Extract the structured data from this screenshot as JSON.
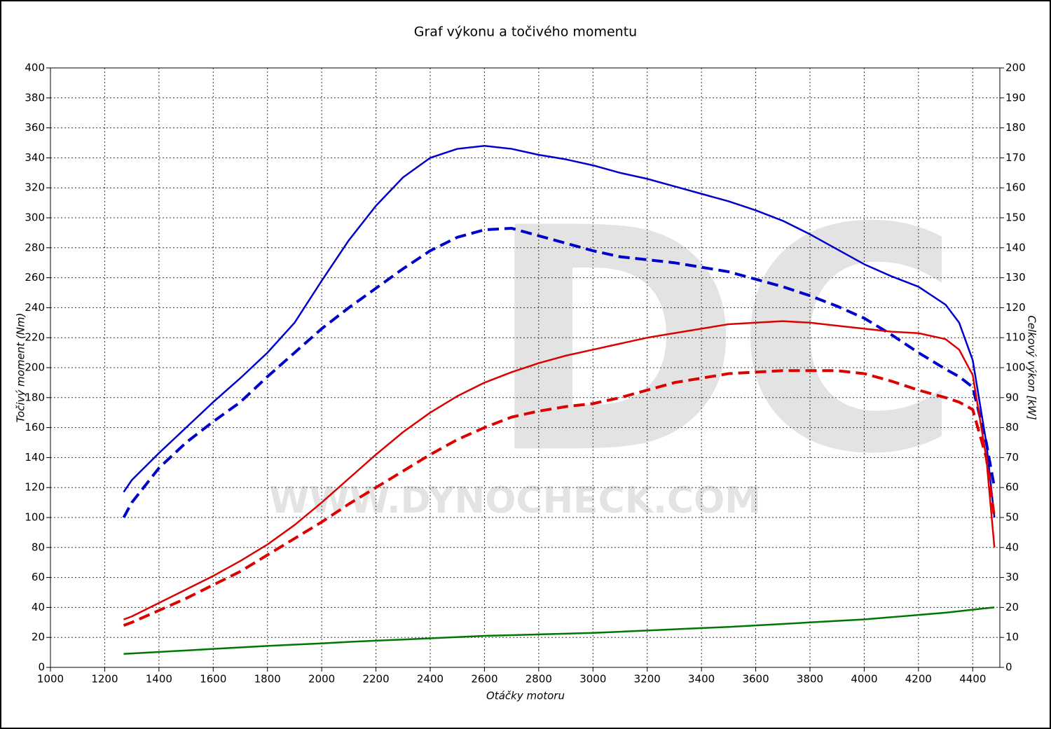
{
  "chart_data": {
    "type": "line",
    "title": "Graf výkonu a točivého momentu",
    "xlabel": "Otáčky motoru",
    "ylabel": "Točivý moment (Nm)",
    "y2label": "Celkový výkon [kW]",
    "watermark": "DC",
    "watermark_url": "WWW.DYNOCHECK.COM",
    "grid": true,
    "xlim": [
      1000,
      4500
    ],
    "xticks": [
      1000,
      1200,
      1400,
      1600,
      1800,
      2000,
      2200,
      2400,
      2600,
      2800,
      3000,
      3200,
      3400,
      3600,
      3800,
      4000,
      4200,
      4400
    ],
    "ylim": [
      0,
      400
    ],
    "yticks": [
      0,
      20,
      40,
      60,
      80,
      100,
      120,
      140,
      160,
      180,
      200,
      220,
      240,
      260,
      280,
      300,
      320,
      340,
      360,
      380,
      400
    ],
    "y2lim": [
      0,
      200
    ],
    "y2ticks": [
      0,
      10,
      20,
      30,
      40,
      50,
      60,
      70,
      80,
      90,
      100,
      110,
      120,
      130,
      140,
      150,
      160,
      170,
      180,
      190,
      200
    ],
    "x": [
      1270,
      1300,
      1400,
      1500,
      1600,
      1700,
      1800,
      1900,
      2000,
      2100,
      2200,
      2300,
      2400,
      2500,
      2600,
      2700,
      2800,
      2900,
      3000,
      3100,
      3200,
      3300,
      3400,
      3500,
      3600,
      3700,
      3800,
      3900,
      4000,
      4100,
      4200,
      4300,
      4350,
      4400,
      4450,
      4480
    ],
    "series": [
      {
        "color": "#0000cc",
        "dashed": false,
        "axis": "y",
        "values": [
          117,
          125,
          143,
          160,
          177,
          193,
          210,
          230,
          258,
          285,
          308,
          327,
          340,
          346,
          348,
          346,
          342,
          339,
          335,
          330,
          326,
          321,
          316,
          311,
          305,
          298,
          289,
          279,
          269,
          261,
          254,
          242,
          230,
          205,
          150,
          100
        ]
      },
      {
        "color": "#0000cc",
        "dashed": true,
        "axis": "y",
        "values": [
          100,
          110,
          133,
          150,
          164,
          177,
          194,
          210,
          226,
          240,
          253,
          266,
          278,
          287,
          292,
          293,
          288,
          283,
          278,
          274,
          272,
          270,
          267,
          264,
          259,
          254,
          248,
          241,
          233,
          222,
          210,
          199,
          194,
          187,
          150,
          120
        ]
      },
      {
        "color": "#dd0000",
        "dashed": false,
        "axis": "y2",
        "values": [
          16,
          17,
          21.5,
          26,
          30.5,
          35.5,
          41,
          47.5,
          55,
          63,
          71,
          78.5,
          85,
          90.5,
          95,
          98.5,
          101.5,
          104,
          106,
          108,
          110,
          111.5,
          113,
          114.5,
          115,
          115.5,
          115,
          114,
          113,
          112,
          111.5,
          109.5,
          106,
          97.5,
          70,
          40
        ]
      },
      {
        "color": "#dd0000",
        "dashed": true,
        "axis": "y2",
        "values": [
          14,
          15,
          19,
          23,
          27.5,
          32,
          37.5,
          43,
          48.5,
          54.5,
          60,
          65.5,
          71,
          76,
          80,
          83.5,
          85.5,
          87,
          88,
          90,
          92.5,
          95,
          96.5,
          98,
          98.5,
          99,
          99,
          99,
          98,
          95.5,
          92.5,
          90,
          88.5,
          86,
          70,
          50
        ]
      },
      {
        "color": "#007700",
        "dashed": false,
        "axis": "y",
        "values": [
          9,
          9.3,
          10.3,
          11.3,
          12.3,
          13.3,
          14.3,
          15.2,
          16,
          17,
          17.8,
          18.6,
          19.4,
          20.2,
          21,
          21.5,
          22,
          22.5,
          23,
          23.8,
          24.6,
          25.4,
          26.2,
          27,
          28,
          29,
          30,
          31,
          32,
          33.5,
          35,
          36.5,
          37.5,
          38.5,
          39.5,
          40
        ]
      }
    ]
  }
}
